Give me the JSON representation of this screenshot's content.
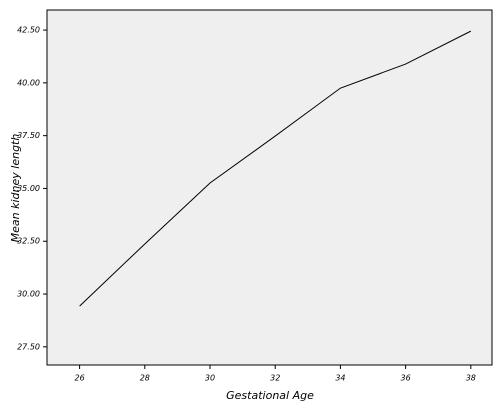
{
  "chart_data": {
    "type": "line",
    "x_label": "Gestational Age",
    "y_label": "Mean kidney length",
    "x": [
      26,
      28,
      30,
      32,
      34,
      36,
      38
    ],
    "series": [
      {
        "color": "#000000",
        "values": [
          29.43,
          32.37,
          35.26,
          37.48,
          39.75,
          40.89,
          42.45
        ]
      }
    ],
    "xlim": [
      25,
      38.65
    ],
    "ylim": [
      26.64,
      43.45
    ],
    "xticks": [
      26,
      28,
      30,
      32,
      34,
      36,
      38
    ],
    "yticks": [
      {
        "value": 27.5,
        "label": "27.50"
      },
      {
        "value": 30,
        "label": "30.00"
      },
      {
        "value": 32.5,
        "label": "32.50"
      },
      {
        "value": 35,
        "label": "35.00"
      },
      {
        "value": 37.5,
        "label": "37.50"
      },
      {
        "value": 40,
        "label": "40.00"
      },
      {
        "value": 42.5,
        "label": "42.50"
      }
    ],
    "background": "#efefef"
  }
}
